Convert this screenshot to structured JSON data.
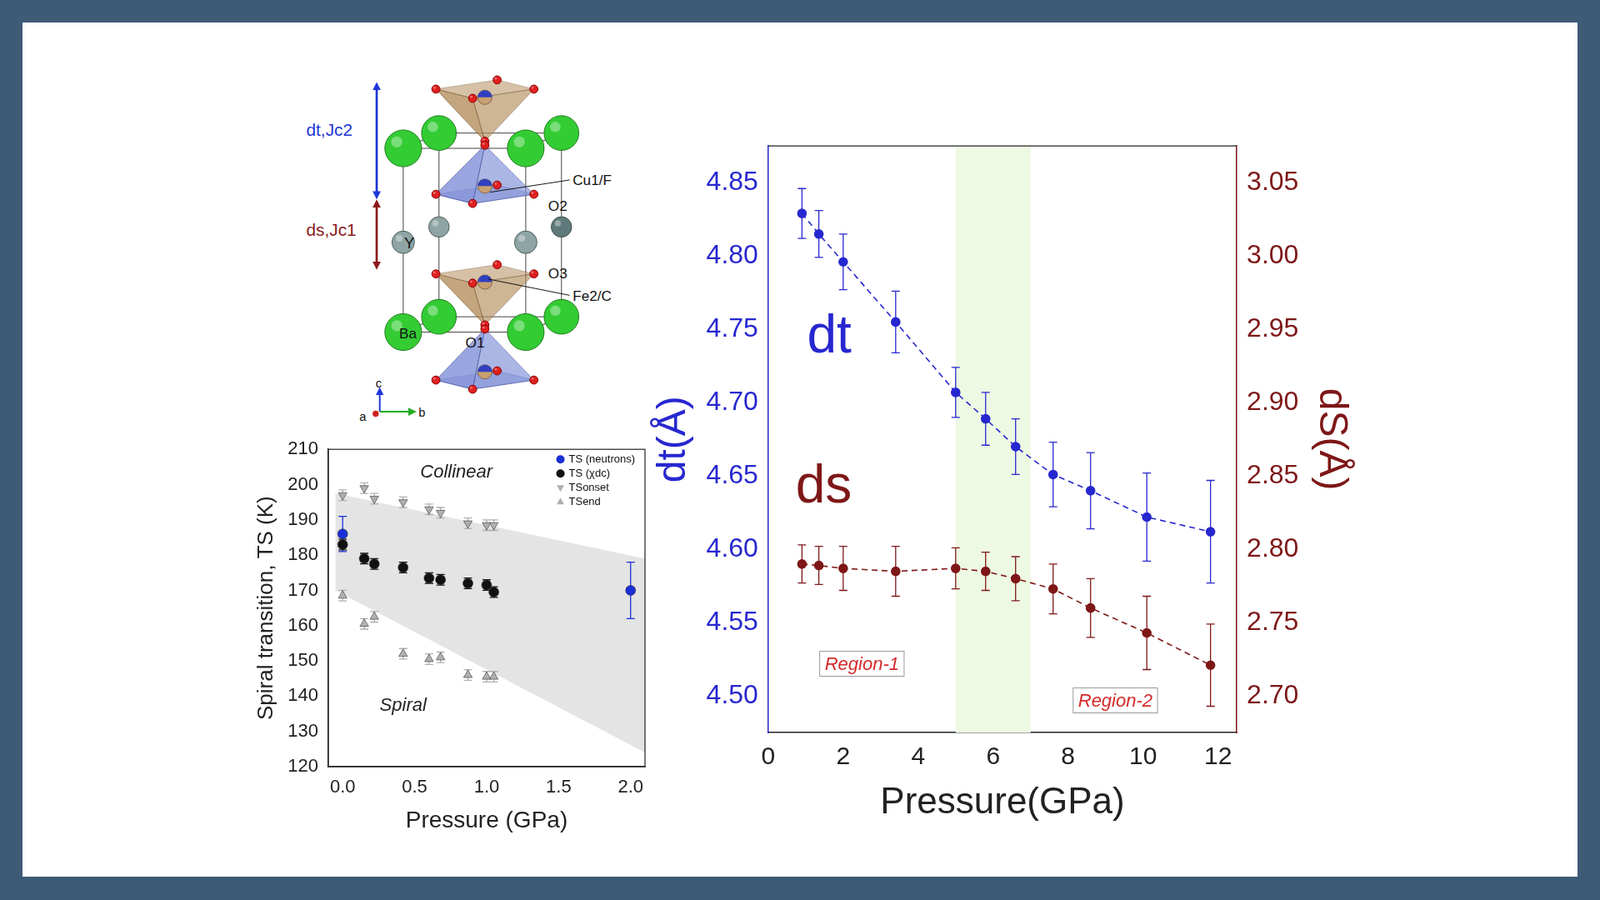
{
  "structure": {
    "arrows": [
      {
        "label": "dt,Jc2",
        "color": "#1f35d8"
      },
      {
        "label": "ds,Jc1",
        "color": "#8b1a1a"
      }
    ],
    "atoms": {
      "cu": "Cu1/F",
      "o2": "O2",
      "y": "Y",
      "o3": "O3",
      "fe": "Fe2/C",
      "ba": "Ba",
      "o1": "O1"
    },
    "axes": {
      "c": "c",
      "a": "a",
      "b": "b"
    }
  },
  "chart_data": [
    {
      "type": "scatter",
      "x_label": "Pressure (GPa)",
      "y_label": "Spiral transition, TS (K)",
      "xlim": [
        -0.1,
        2.1
      ],
      "xticks": [
        {
          "value": 0,
          "label": "0.0"
        },
        {
          "value": 0.5,
          "label": "0.5"
        },
        {
          "value": 1,
          "label": "1.0"
        },
        {
          "value": 1.5,
          "label": "1.5"
        },
        {
          "value": 2,
          "label": "2.0"
        }
      ],
      "ylim": [
        120,
        210
      ],
      "yticks": [
        120,
        130,
        140,
        150,
        160,
        170,
        180,
        190,
        200,
        210
      ],
      "grid": false,
      "legend": "upper right",
      "annotations": [
        {
          "text": "Collinear",
          "x": 0.79,
          "y": 203.4
        },
        {
          "text": "Spiral",
          "x": 0.42,
          "y": 137.3
        }
      ],
      "band": {
        "x": [
          -0.05,
          2.1
        ],
        "upper": [
          197.5,
          179
        ],
        "lower": [
          170,
          124
        ],
        "color": "#e4e4e4"
      },
      "series": [
        {
          "name": "TS (neutrons)",
          "color": "#1a2fd6",
          "marker": "circle",
          "x": [
            0,
            2
          ],
          "values": [
            186,
            170
          ],
          "errors": [
            5,
            8
          ]
        },
        {
          "name": "TS (χdc)",
          "color": "#111111",
          "marker": "circle",
          "x": [
            0,
            0.15,
            0.22,
            0.42,
            0.6,
            0.68,
            0.87,
            1.0,
            1.05
          ],
          "values": [
            183,
            179,
            177.5,
            176.5,
            173.5,
            173,
            172,
            171.5,
            169.5
          ],
          "errors": [
            1.5,
            1.5,
            1.5,
            1.5,
            1.5,
            1.5,
            1.5,
            1.5,
            1.5
          ]
        },
        {
          "name": "TSonset",
          "color": "#b0b0b0",
          "marker": "triangle-down",
          "x": [
            0,
            0.15,
            0.22,
            0.42,
            0.6,
            0.68,
            0.87,
            1.0,
            1.05
          ],
          "values": [
            197,
            199,
            196,
            195,
            193,
            192,
            189,
            188.5,
            188.5
          ],
          "errors": [
            1.5,
            1.5,
            1.5,
            1.5,
            1.5,
            1.5,
            1.5,
            1.5,
            1.5
          ]
        },
        {
          "name": "TSend",
          "color": "#b0b0b0",
          "marker": "triangle-up",
          "x": [
            0,
            0.15,
            0.22,
            0.42,
            0.6,
            0.68,
            0.87,
            1.0,
            1.05
          ],
          "values": [
            168.5,
            160.5,
            162.5,
            152,
            150.5,
            151,
            146,
            145.5,
            145.5
          ],
          "errors": [
            1.5,
            1.5,
            1.5,
            1.5,
            1.5,
            1.5,
            1.5,
            1.5,
            1.5
          ]
        }
      ]
    },
    {
      "type": "line",
      "x_label": "Pressure(GPa)",
      "y_label": "dt(Å)",
      "y2_label": "dS(Å)",
      "xlim": [
        0,
        12.5
      ],
      "xticks": [
        0,
        2,
        4,
        6,
        8,
        10,
        12
      ],
      "ylim": [
        4.475,
        4.875
      ],
      "yticks": [
        {
          "value": 4.5,
          "label": "4.50"
        },
        {
          "value": 4.55,
          "label": "4.55"
        },
        {
          "value": 4.6,
          "label": "4.60"
        },
        {
          "value": 4.65,
          "label": "4.65"
        },
        {
          "value": 4.7,
          "label": "4.70"
        },
        {
          "value": 4.75,
          "label": "4.75"
        },
        {
          "value": 4.8,
          "label": "4.80"
        },
        {
          "value": 4.85,
          "label": "4.85"
        }
      ],
      "y2lim": [
        2.675,
        3.075
      ],
      "y2ticks": [
        {
          "value": 2.7,
          "label": "2.70"
        },
        {
          "value": 2.75,
          "label": "2.75"
        },
        {
          "value": 2.8,
          "label": "2.80"
        },
        {
          "value": 2.85,
          "label": "2.85"
        },
        {
          "value": 2.9,
          "label": "2.90"
        },
        {
          "value": 2.95,
          "label": "2.95"
        },
        {
          "value": 3.0,
          "label": "3.00"
        },
        {
          "value": 3.05,
          "label": "3.05"
        }
      ],
      "grid": false,
      "highlight": {
        "x": [
          5,
          7
        ],
        "color": "#eef9e3"
      },
      "annotations": [
        {
          "text": "Region-1",
          "x": 2.5,
          "y": 4.522,
          "color": "#d42a2a"
        },
        {
          "text": "Region-2",
          "x": 9.26,
          "y": 4.497,
          "color": "#d42a2a"
        }
      ],
      "series": [
        {
          "name": "dt",
          "color": "#2727d0",
          "axis": "y",
          "marker": "circle",
          "line_style": "dashed",
          "name_at": {
            "x": 1.63,
            "y": 4.744
          },
          "x": [
            0.9,
            1.35,
            2.0,
            3.4,
            5.0,
            5.8,
            6.6,
            7.6,
            8.6,
            10.1,
            11.8
          ],
          "values": [
            4.829,
            4.815,
            4.796,
            4.755,
            4.707,
            4.689,
            4.67,
            4.651,
            4.64,
            4.622,
            4.612
          ],
          "errors": [
            0.017,
            0.016,
            0.019,
            0.021,
            0.017,
            0.018,
            0.019,
            0.022,
            0.026,
            0.03,
            0.035
          ]
        },
        {
          "name": "ds",
          "color": "#7e1717",
          "axis": "y2",
          "marker": "circle",
          "line_style": "dashed",
          "name_at": {
            "x": 1.48,
            "y": 2.842
          },
          "x": [
            0.9,
            1.35,
            2.0,
            3.4,
            5.0,
            5.8,
            6.6,
            7.6,
            8.6,
            10.1,
            11.8
          ],
          "values": [
            2.79,
            2.789,
            2.787,
            2.785,
            2.787,
            2.785,
            2.78,
            2.773,
            2.76,
            2.743,
            2.721
          ],
          "errors": [
            0.013,
            0.013,
            0.015,
            0.017,
            0.014,
            0.013,
            0.015,
            0.017,
            0.02,
            0.025,
            0.028
          ]
        }
      ]
    }
  ]
}
